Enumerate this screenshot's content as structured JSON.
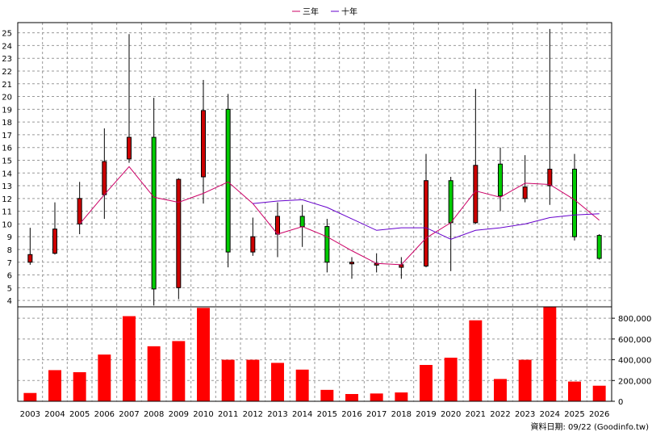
{
  "chart_data": {
    "type": "candlestick+line+bar",
    "legend": {
      "position": "top-center",
      "items": [
        {
          "label": "三年",
          "color": "#cc0066"
        },
        {
          "label": "十年",
          "color": "#6600cc"
        }
      ]
    },
    "categories": [
      "2003",
      "2004",
      "2005",
      "2006",
      "2007",
      "2008",
      "2009",
      "2010",
      "2011",
      "2012",
      "2013",
      "2014",
      "2015",
      "2016",
      "2017",
      "2018",
      "2019",
      "2020",
      "2021",
      "2022",
      "2023",
      "2024",
      "2025",
      "2026"
    ],
    "price_axis": {
      "ticks": [
        4,
        5,
        6,
        7,
        8,
        9,
        10,
        11,
        12,
        13,
        14,
        15,
        16,
        17,
        18,
        19,
        20,
        21,
        22,
        23,
        24,
        25
      ],
      "range": [
        3.5,
        25.8
      ]
    },
    "candles": [
      {
        "open": 7.0,
        "close": 7.6,
        "high": 9.7,
        "low": 6.8
      },
      {
        "open": 7.7,
        "close": 9.6,
        "high": 11.7,
        "low": 7.6
      },
      {
        "open": 10.0,
        "close": 12.0,
        "high": 13.3,
        "low": 9.2
      },
      {
        "open": 12.3,
        "close": 14.9,
        "high": 17.5,
        "low": 10.4
      },
      {
        "open": 15.1,
        "close": 16.8,
        "high": 24.9,
        "low": 14.8
      },
      {
        "open": 16.8,
        "close": 4.9,
        "high": 19.9,
        "low": 3.6
      },
      {
        "open": 5.0,
        "close": 13.5,
        "high": 13.6,
        "low": 4.1
      },
      {
        "open": 13.7,
        "close": 18.9,
        "high": 21.3,
        "low": 11.6
      },
      {
        "open": 19.0,
        "close": 7.8,
        "high": 20.2,
        "low": 6.6
      },
      {
        "open": 7.8,
        "close": 9.0,
        "high": 10.5,
        "low": 7.5
      },
      {
        "open": 9.2,
        "close": 10.6,
        "high": 11.7,
        "low": 7.4
      },
      {
        "open": 10.6,
        "close": 9.8,
        "high": 11.5,
        "low": 8.2
      },
      {
        "open": 9.8,
        "close": 7.0,
        "high": 10.4,
        "low": 6.2
      },
      {
        "open": 7.0,
        "close": 7.0,
        "high": 7.4,
        "low": 5.7
      },
      {
        "open": 6.9,
        "close": 6.9,
        "high": 7.7,
        "low": 6.2
      },
      {
        "open": 6.6,
        "close": 6.8,
        "high": 7.4,
        "low": 5.7
      },
      {
        "open": 6.7,
        "close": 13.4,
        "high": 15.5,
        "low": 6.6
      },
      {
        "open": 13.4,
        "close": 10.1,
        "high": 13.7,
        "low": 6.3
      },
      {
        "open": 10.1,
        "close": 14.6,
        "high": 20.6,
        "low": 10.0
      },
      {
        "open": 14.7,
        "close": 12.2,
        "high": 16.0,
        "low": 11.0
      },
      {
        "open": 12.0,
        "close": 12.9,
        "high": 15.4,
        "low": 11.7
      },
      {
        "open": 13.0,
        "close": 14.3,
        "high": 25.3,
        "low": 11.5
      },
      {
        "open": 14.3,
        "close": 9.0,
        "high": 15.5,
        "low": 8.7
      },
      {
        "open": 9.1,
        "close": 7.3,
        "high": 9.2,
        "low": 7.2
      }
    ],
    "series": [
      {
        "name": "三年",
        "color": "#cc0066",
        "values": [
          null,
          null,
          10.0,
          12.3,
          14.5,
          12.1,
          11.7,
          12.4,
          13.3,
          11.6,
          9.2,
          9.8,
          9.0,
          7.9,
          6.9,
          6.8,
          8.9,
          10.1,
          12.6,
          12.1,
          13.2,
          13.1,
          11.9,
          10.3
        ]
      },
      {
        "name": "十年",
        "color": "#6600cc",
        "values": [
          null,
          null,
          null,
          null,
          null,
          null,
          null,
          null,
          null,
          11.6,
          11.8,
          11.9,
          11.3,
          10.4,
          9.5,
          9.7,
          9.7,
          8.8,
          9.5,
          9.7,
          10.0,
          10.5,
          10.7,
          10.8
        ]
      }
    ],
    "volume_axis": {
      "ticks": [
        0,
        200000,
        400000,
        600000,
        800000
      ],
      "tick_labels": [
        "0",
        "200,000",
        "400,000",
        "600,000",
        "800,000"
      ],
      "range": [
        0,
        910000
      ]
    },
    "volumes": [
      80000,
      300000,
      280000,
      450000,
      820000,
      530000,
      580000,
      900000,
      400000,
      400000,
      370000,
      305000,
      110000,
      70000,
      75000,
      85000,
      350000,
      420000,
      780000,
      215000,
      400000,
      920000,
      190000,
      150000
    ],
    "colors": {
      "up": "#cc0000",
      "down": "#00cc00",
      "volume": "#ff0000",
      "grid": "#999999"
    }
  },
  "footer": {
    "source": "資料日期: 09/22 (Goodinfo.tw)"
  }
}
